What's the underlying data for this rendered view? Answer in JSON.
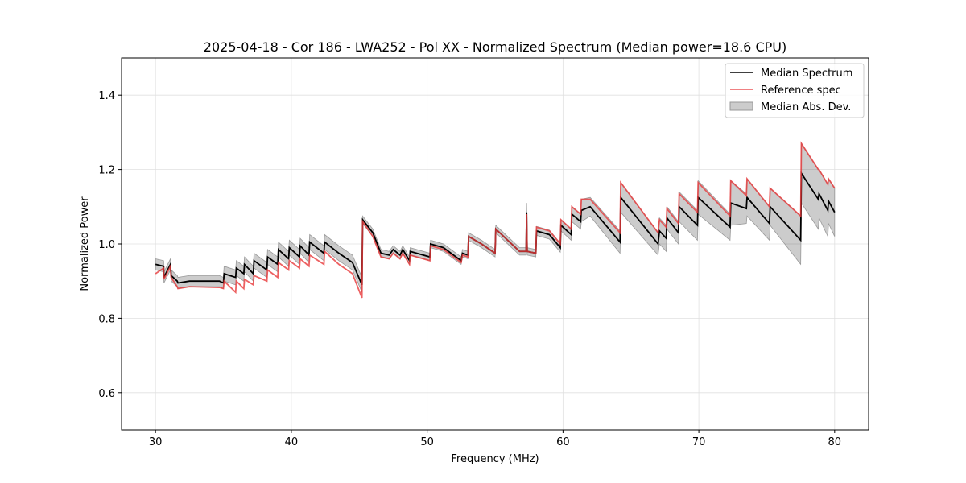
{
  "chart_data": {
    "type": "line",
    "title": "2025-04-18 - Cor 186 - LWA252 - Pol XX - Normalized Spectrum (Median power=18.6 CPU)",
    "xlabel": "Frequency (MHz)",
    "ylabel": "Normalized Power",
    "xlim": [
      27.5,
      82.5
    ],
    "ylim": [
      0.5,
      1.5
    ],
    "xticks": [
      30,
      40,
      50,
      60,
      70,
      80
    ],
    "xtick_labels": [
      "30",
      "40",
      "50",
      "60",
      "70",
      "80"
    ],
    "yticks": [
      0.6,
      0.8,
      1.0,
      1.2,
      1.4
    ],
    "ytick_labels": [
      "0.6",
      "0.8",
      "1.0",
      "1.2",
      "1.4"
    ],
    "grid": true,
    "legend_position": "top-right",
    "legend": [
      "Median Spectrum",
      "Reference spec",
      "Median Abs. Dev."
    ],
    "colors": {
      "median": "#000000",
      "reference": "#e8393b",
      "mad": "#b0b0b0"
    },
    "x": [
      30.0,
      30.6,
      30.62,
      31.1,
      31.15,
      31.6,
      31.65,
      32.5,
      34.7,
      35.0,
      35.05,
      35.9,
      35.95,
      36.5,
      36.55,
      37.2,
      37.25,
      38.2,
      38.25,
      39.0,
      39.05,
      39.8,
      39.85,
      40.6,
      40.65,
      41.3,
      41.35,
      42.4,
      42.45,
      43.5,
      44.5,
      45.2,
      45.25,
      46.0,
      46.6,
      47.2,
      47.5,
      48.0,
      48.2,
      48.7,
      48.75,
      50.2,
      50.25,
      51.2,
      52.5,
      52.6,
      53.0,
      53.05,
      54.0,
      55.0,
      55.05,
      56.8,
      57.28,
      57.32,
      57.36,
      58.0,
      58.05,
      59.0,
      59.8,
      59.85,
      60.6,
      60.65,
      61.3,
      61.35,
      62.0,
      64.2,
      64.25,
      67.0,
      67.1,
      67.6,
      67.65,
      68.5,
      68.55,
      69.9,
      69.95,
      72.3,
      72.35,
      73.5,
      73.55,
      75.2,
      75.25,
      77.5,
      77.55,
      78.8,
      78.85,
      79.5,
      79.55,
      80.0
    ],
    "series": [
      {
        "name": "Median Spectrum",
        "values": [
          0.945,
          0.94,
          0.91,
          0.945,
          0.915,
          0.9,
          0.895,
          0.9,
          0.9,
          0.895,
          0.92,
          0.91,
          0.935,
          0.92,
          0.945,
          0.92,
          0.955,
          0.93,
          0.965,
          0.945,
          0.985,
          0.96,
          0.99,
          0.965,
          0.995,
          0.97,
          1.005,
          0.975,
          1.005,
          0.975,
          0.95,
          0.89,
          1.065,
          1.03,
          0.975,
          0.97,
          0.985,
          0.97,
          0.985,
          0.955,
          0.98,
          0.965,
          1.0,
          0.99,
          0.955,
          0.975,
          0.97,
          1.02,
          1.0,
          0.975,
          1.04,
          0.98,
          0.98,
          1.085,
          0.98,
          0.975,
          1.035,
          1.025,
          0.99,
          1.05,
          1.025,
          1.08,
          1.06,
          1.09,
          1.1,
          1.005,
          1.125,
          1.0,
          1.035,
          1.015,
          1.07,
          1.03,
          1.1,
          1.05,
          1.125,
          1.045,
          1.11,
          1.095,
          1.125,
          1.055,
          1.1,
          1.01,
          1.19,
          1.12,
          1.135,
          1.09,
          1.115,
          1.085
        ]
      },
      {
        "name": "Reference spec",
        "values": [
          0.92,
          0.935,
          0.905,
          0.94,
          0.91,
          0.885,
          0.88,
          0.885,
          0.883,
          0.88,
          0.9,
          0.87,
          0.9,
          0.88,
          0.905,
          0.89,
          0.915,
          0.9,
          0.93,
          0.91,
          0.95,
          0.93,
          0.955,
          0.935,
          0.96,
          0.94,
          0.97,
          0.945,
          0.98,
          0.945,
          0.92,
          0.855,
          1.06,
          1.02,
          0.965,
          0.96,
          0.975,
          0.96,
          0.975,
          0.945,
          0.97,
          0.955,
          0.995,
          0.985,
          0.95,
          0.97,
          0.965,
          1.02,
          1.0,
          0.975,
          1.04,
          0.98,
          0.98,
          1.08,
          0.98,
          0.975,
          1.045,
          1.035,
          1.0,
          1.065,
          1.04,
          1.1,
          1.08,
          1.12,
          1.12,
          1.03,
          1.165,
          1.03,
          1.065,
          1.045,
          1.095,
          1.055,
          1.135,
          1.085,
          1.165,
          1.075,
          1.17,
          1.13,
          1.175,
          1.1,
          1.15,
          1.075,
          1.27,
          1.2,
          1.2,
          1.16,
          1.175,
          1.15
        ]
      },
      {
        "name": "Median Abs. Dev.",
        "values": [
          0.015,
          0.015,
          0.015,
          0.015,
          0.015,
          0.015,
          0.015,
          0.015,
          0.015,
          0.015,
          0.02,
          0.02,
          0.02,
          0.02,
          0.02,
          0.02,
          0.02,
          0.02,
          0.02,
          0.02,
          0.02,
          0.02,
          0.02,
          0.02,
          0.02,
          0.02,
          0.02,
          0.02,
          0.02,
          0.02,
          0.02,
          0.02,
          0.01,
          0.01,
          0.01,
          0.01,
          0.01,
          0.01,
          0.01,
          0.01,
          0.01,
          0.01,
          0.01,
          0.01,
          0.01,
          0.01,
          0.01,
          0.01,
          0.01,
          0.01,
          0.01,
          0.01,
          0.01,
          0.025,
          0.01,
          0.01,
          0.012,
          0.012,
          0.012,
          0.015,
          0.015,
          0.02,
          0.02,
          0.03,
          0.025,
          0.03,
          0.04,
          0.03,
          0.035,
          0.035,
          0.03,
          0.03,
          0.04,
          0.04,
          0.045,
          0.035,
          0.06,
          0.04,
          0.05,
          0.045,
          0.05,
          0.065,
          0.08,
          0.08,
          0.065,
          0.07,
          0.06,
          0.065
        ]
      }
    ]
  }
}
